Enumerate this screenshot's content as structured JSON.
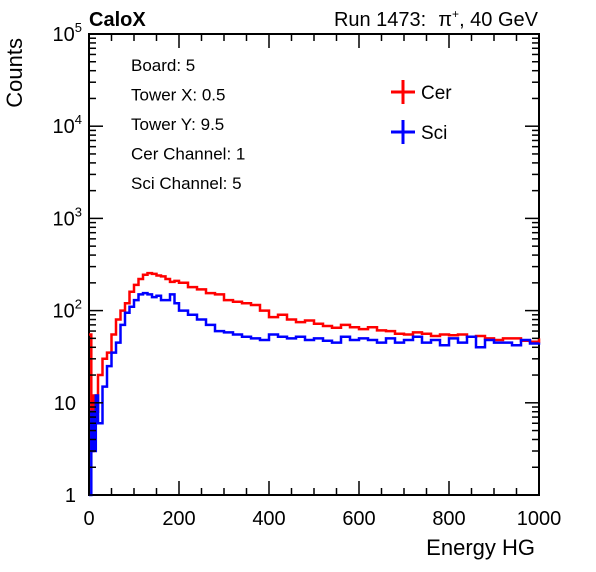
{
  "header": {
    "experiment": "CaloX",
    "run_label": "Run 1473:",
    "beam_particle": "π",
    "beam_charge": "+",
    "beam_energy": ", 40 GeV"
  },
  "info_box": [
    "Board: 5",
    "Tower X: 0.5",
    "Tower Y: 9.5",
    "Cer Channel: 1",
    "Sci Channel: 5"
  ],
  "colors": {
    "Cer": "#ff0000",
    "Sci": "#0000ff",
    "axis": "#000000"
  },
  "chart_data": {
    "type": "line",
    "xlabel": "Energy HG",
    "ylabel": "Counts",
    "xlim": [
      0,
      1000
    ],
    "ylim": [
      1,
      100000
    ],
    "yscale": "log",
    "grid": false,
    "legend_placement": "top-right",
    "x_ticks": [
      "0",
      "200",
      "400",
      "600",
      "800",
      "1000"
    ],
    "y_ticks": [
      {
        "base": "1",
        "exp": ""
      },
      {
        "base": "10",
        "exp": ""
      },
      {
        "base": "10",
        "exp": "2"
      },
      {
        "base": "10",
        "exp": "3"
      },
      {
        "base": "10",
        "exp": "4"
      },
      {
        "base": "10",
        "exp": "5"
      }
    ],
    "series": [
      {
        "name": "Cer",
        "x": [
          0,
          5,
          10,
          15,
          20,
          30,
          40,
          50,
          60,
          70,
          80,
          90,
          100,
          110,
          120,
          130,
          140,
          150,
          160,
          170,
          180,
          190,
          200,
          220,
          240,
          260,
          280,
          300,
          320,
          340,
          360,
          380,
          400,
          420,
          440,
          460,
          480,
          500,
          520,
          540,
          560,
          580,
          600,
          620,
          640,
          660,
          680,
          700,
          720,
          740,
          760,
          780,
          800,
          820,
          840,
          860,
          880,
          900,
          920,
          940,
          960,
          980,
          1000
        ],
        "y": [
          55,
          3,
          12,
          8,
          20,
          30,
          35,
          55,
          80,
          100,
          120,
          160,
          190,
          220,
          245,
          255,
          250,
          240,
          235,
          220,
          205,
          210,
          200,
          180,
          170,
          155,
          150,
          130,
          125,
          120,
          115,
          100,
          85,
          90,
          80,
          75,
          78,
          72,
          68,
          65,
          70,
          66,
          63,
          66,
          61,
          60,
          56,
          55,
          58,
          56,
          53,
          55,
          54,
          55,
          52,
          53,
          50,
          48,
          50,
          50,
          47,
          46,
          50
        ]
      },
      {
        "name": "Sci",
        "x": [
          0,
          5,
          10,
          15,
          20,
          30,
          40,
          50,
          60,
          70,
          80,
          90,
          100,
          110,
          120,
          130,
          140,
          150,
          160,
          170,
          180,
          190,
          200,
          220,
          240,
          260,
          280,
          300,
          320,
          340,
          360,
          380,
          400,
          420,
          440,
          460,
          480,
          500,
          520,
          540,
          560,
          580,
          600,
          620,
          640,
          660,
          680,
          700,
          720,
          740,
          760,
          780,
          800,
          820,
          840,
          860,
          880,
          900,
          920,
          940,
          960,
          980,
          1000
        ],
        "y": [
          1,
          8,
          3,
          12,
          6,
          15,
          25,
          35,
          45,
          70,
          95,
          110,
          130,
          150,
          155,
          150,
          140,
          145,
          130,
          130,
          150,
          120,
          100,
          90,
          80,
          70,
          60,
          58,
          55,
          52,
          50,
          48,
          55,
          52,
          50,
          52,
          48,
          50,
          47,
          45,
          52,
          48,
          50,
          48,
          45,
          50,
          45,
          48,
          52,
          45,
          48,
          42,
          50,
          45,
          52,
          40,
          48,
          45,
          45,
          42,
          48,
          44,
          45
        ]
      }
    ]
  }
}
